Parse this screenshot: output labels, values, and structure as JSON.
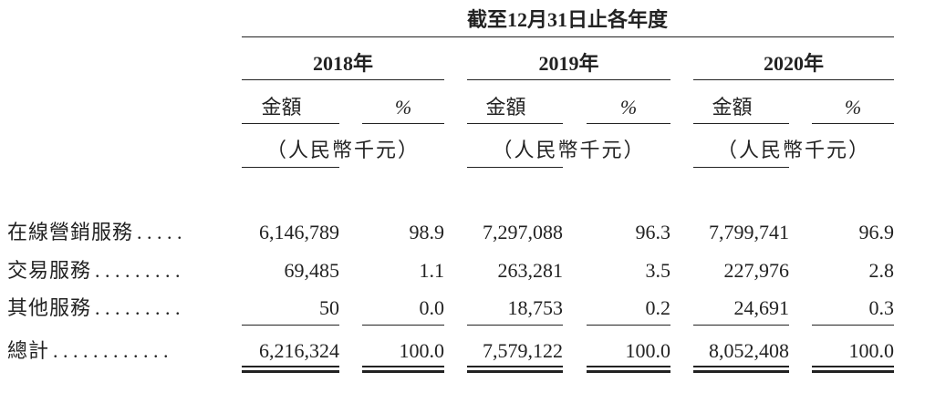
{
  "table": {
    "period_header": "截至12月31日止各年度",
    "columns": [
      {
        "year": "2018年",
        "amount_label": "金額",
        "pct_label": "%",
        "unit": "（人民幣千元）"
      },
      {
        "year": "2019年",
        "amount_label": "金額",
        "pct_label": "%",
        "unit": "（人民幣千元）"
      },
      {
        "year": "2020年",
        "amount_label": "金額",
        "pct_label": "%",
        "unit": "（人民幣千元）"
      }
    ],
    "rows": [
      {
        "label": "在線營銷服務",
        "leader": ". . . . .",
        "cells": [
          "6,146,789",
          "98.9",
          "7,297,088",
          "96.3",
          "7,799,741",
          "96.9"
        ]
      },
      {
        "label": "交易服務",
        "leader": ". . . . . . . . .",
        "cells": [
          "69,485",
          "1.1",
          "263,281",
          "3.5",
          "227,976",
          "2.8"
        ]
      },
      {
        "label": "其他服務",
        "leader": ". . . . . . . . .",
        "cells": [
          "50",
          "0.0",
          "18,753",
          "0.2",
          "24,691",
          "0.3"
        ]
      },
      {
        "label": "總計",
        "leader": ". . . . . . . . . . . .",
        "cells": [
          "6,216,324",
          "100.0",
          "7,579,122",
          "100.0",
          "8,052,408",
          "100.0"
        ]
      }
    ]
  }
}
